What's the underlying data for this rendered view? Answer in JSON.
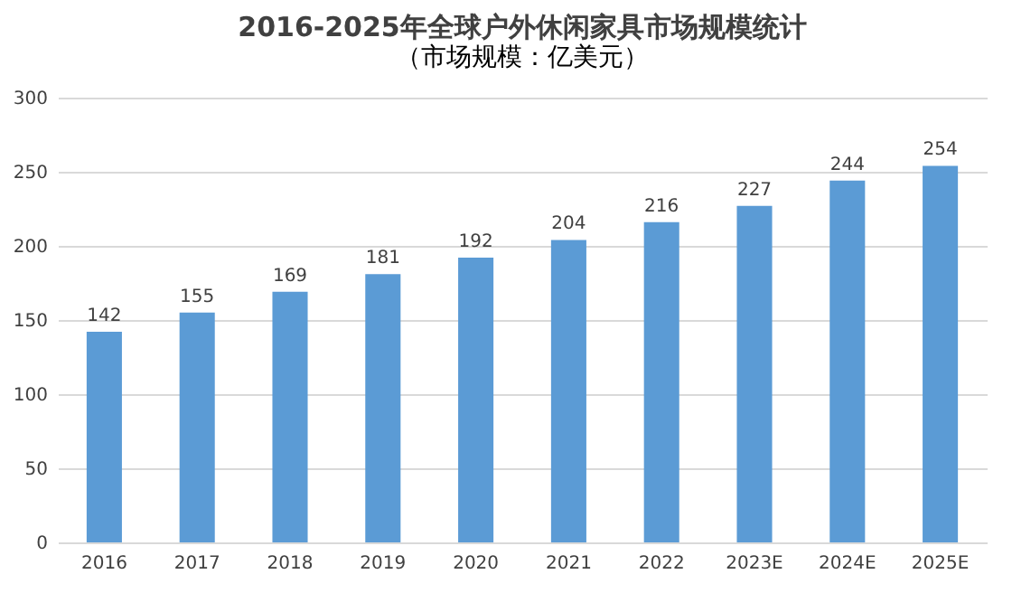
{
  "chart_data": {
    "type": "bar",
    "title": "2016-2025年全球户外休闲家具市场规模统计",
    "subtitle": "（市场规模：亿美元）",
    "categories": [
      "2016",
      "2017",
      "2018",
      "2019",
      "2020",
      "2021",
      "2022",
      "2023E",
      "2024E",
      "2025E"
    ],
    "values": [
      142,
      155,
      169,
      181,
      192,
      204,
      216,
      227,
      244,
      254
    ],
    "color": "#5b9bd5",
    "ylim": [
      0,
      300
    ],
    "yticks": [
      0,
      50,
      100,
      150,
      200,
      250,
      300
    ],
    "grid": "y",
    "data_labels": true
  }
}
